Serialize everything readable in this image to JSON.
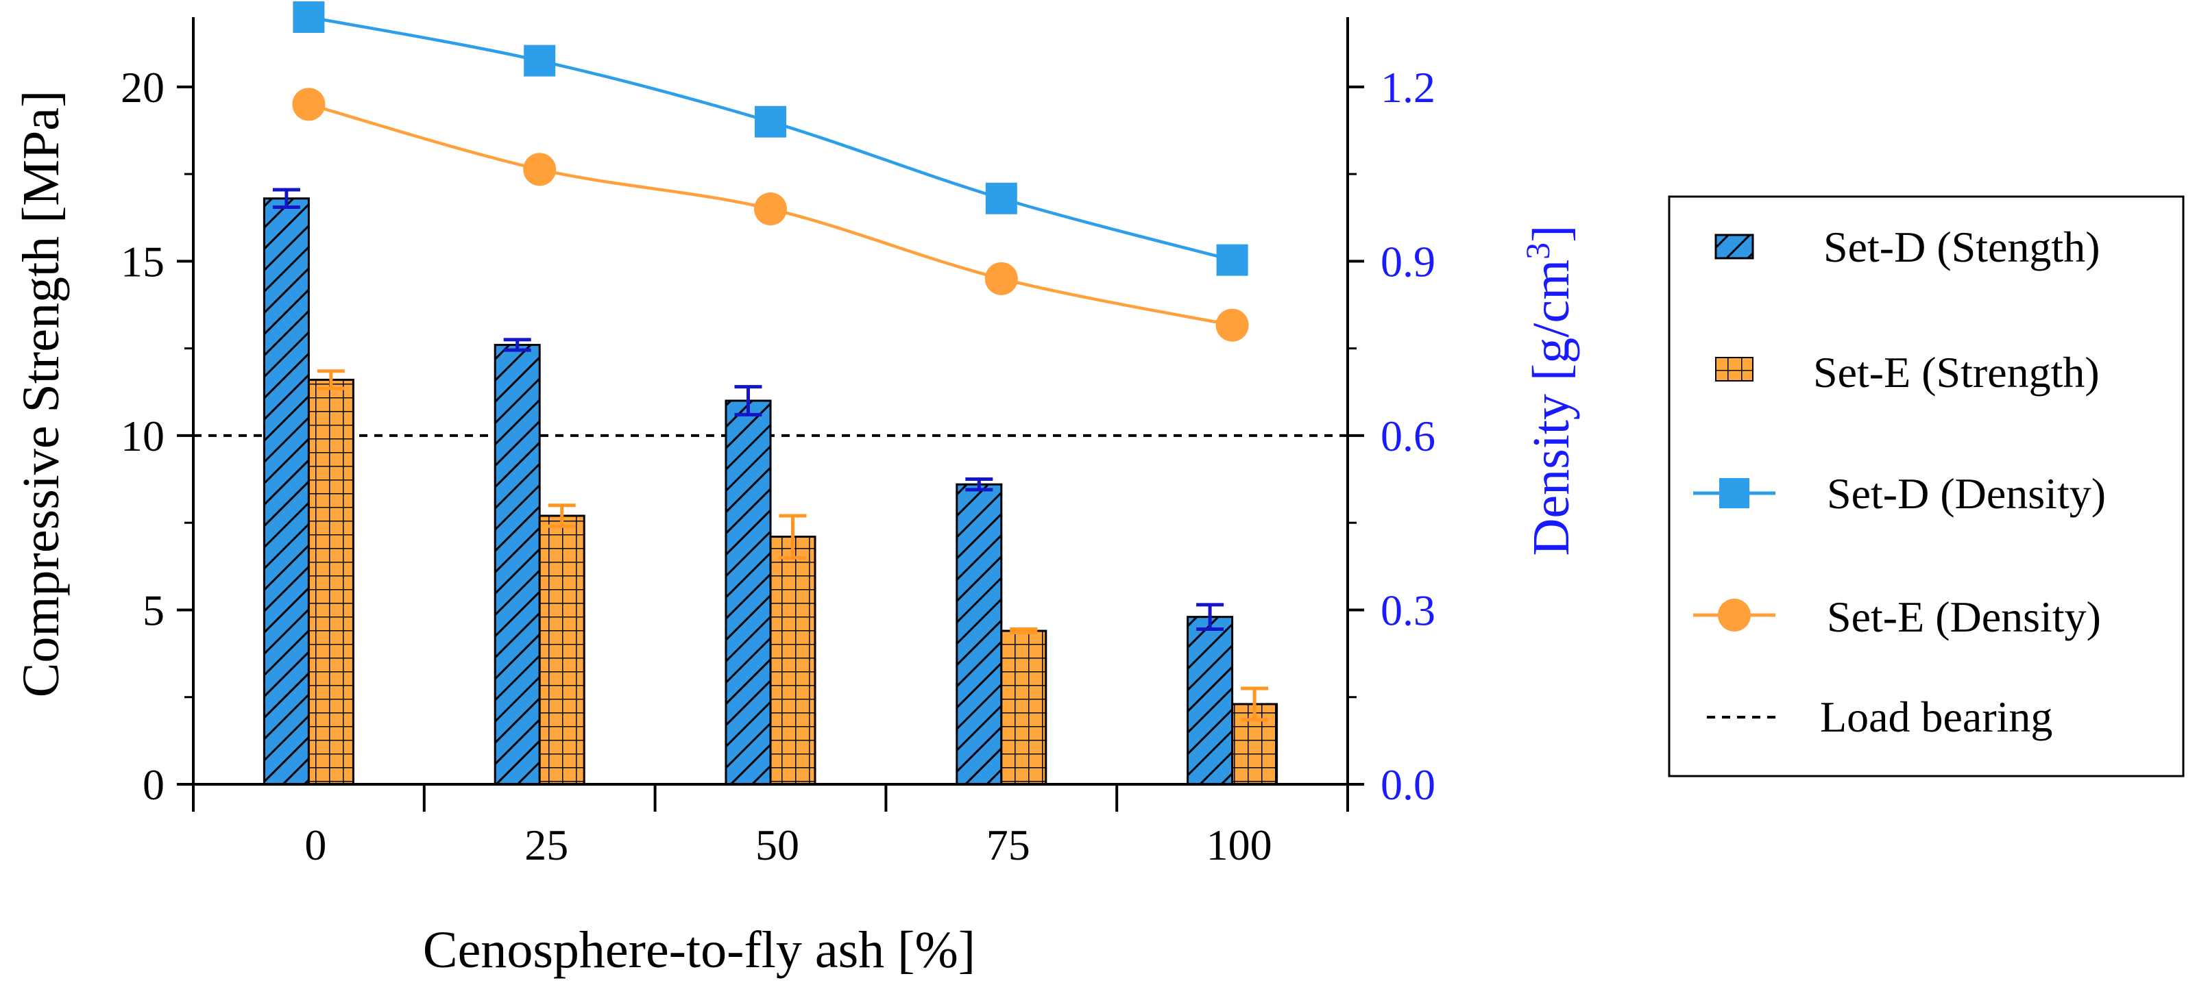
{
  "chart_data": {
    "type": "bar",
    "categories": [
      "0",
      "25",
      "50",
      "75",
      "100"
    ],
    "xlabel": "Cenosphere-to-fly ash [%]",
    "ylabel": "Compressive Strength [MPa]",
    "y2label_main": "Density [g/cm",
    "y2label_sup": "3",
    "y2label_end": "]",
    "ylim": [
      0,
      22
    ],
    "y2lim": [
      0,
      1.32
    ],
    "yticks": [
      0,
      5,
      10,
      15,
      20
    ],
    "yticks_labels": [
      "0",
      "5",
      "10",
      "15",
      "20"
    ],
    "y2ticks": [
      0.0,
      0.3,
      0.6,
      0.9,
      1.2
    ],
    "y2ticks_labels": [
      "0.0",
      "0.3",
      "0.6",
      "0.9",
      "1.2"
    ],
    "bar_series": [
      {
        "name": "Set-D (Stength)",
        "values": [
          16.8,
          12.6,
          11.0,
          8.6,
          4.8
        ],
        "errors": [
          0.25,
          0.15,
          0.4,
          0.15,
          0.35
        ],
        "color": "#2f97e3",
        "error_color": "#1515c8",
        "hatch": "diagonal"
      },
      {
        "name": "Set-E (Strength)",
        "values": [
          11.6,
          7.7,
          7.1,
          4.4,
          2.3
        ],
        "errors": [
          0.25,
          0.3,
          0.6,
          0.05,
          0.45
        ],
        "color": "#ffa63d",
        "error_color": "#ff9722",
        "hatch": "grid"
      }
    ],
    "line_series": [
      {
        "name": "Set-D (Density)",
        "values": [
          1.32,
          1.245,
          1.14,
          1.008,
          0.902
        ],
        "color": "#2c9eea",
        "marker": "square"
      },
      {
        "name": "Set-E (Density)",
        "values": [
          1.17,
          1.058,
          0.99,
          0.87,
          0.79
        ],
        "color": "#ffa03a",
        "marker": "circle"
      }
    ],
    "reference_line": {
      "name": "Load bearing",
      "y": 10,
      "style": "dashed"
    },
    "legend_position": "right",
    "colors": {
      "right_axis": "#1a1aff",
      "axis": "#000000"
    }
  }
}
